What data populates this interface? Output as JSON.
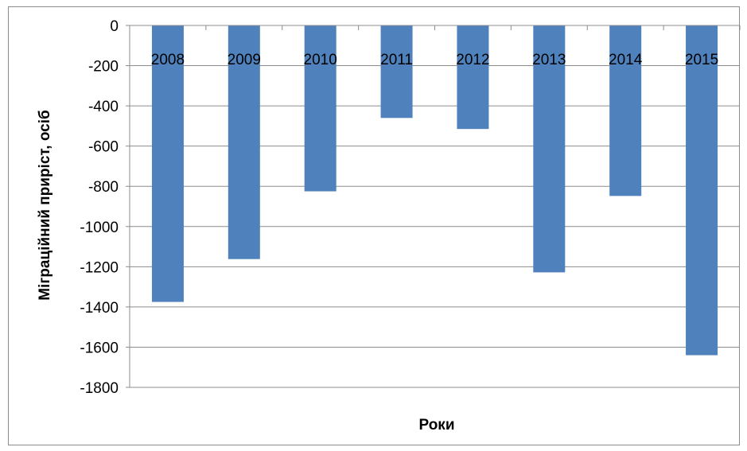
{
  "chart_data": {
    "type": "bar",
    "categories": [
      "2008",
      "2009",
      "2010",
      "2011",
      "2012",
      "2013",
      "2014",
      "2015"
    ],
    "values": [
      -1375,
      -1162,
      -825,
      -460,
      -515,
      -1228,
      -848,
      -1640
    ],
    "xlabel": "Роки",
    "ylabel": "Міграційний приріст, осіб",
    "ylim": [
      -1800,
      0
    ],
    "yticks": [
      0,
      -200,
      -400,
      -600,
      -800,
      -1000,
      -1200,
      -1400,
      -1600,
      -1800
    ],
    "grid": true,
    "legend": "none",
    "bar_color": "#4F81BD",
    "grid_color": "#8C8C8C"
  }
}
